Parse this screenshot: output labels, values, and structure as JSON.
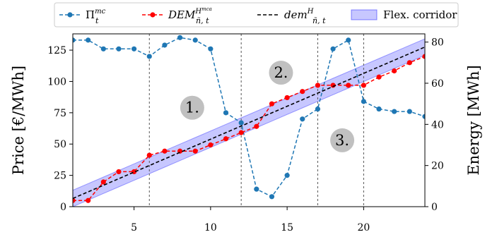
{
  "chart_data": {
    "type": "line",
    "x": [
      1,
      2,
      3,
      4,
      5,
      6,
      7,
      8,
      9,
      10,
      11,
      12,
      13,
      14,
      15,
      16,
      17,
      18,
      19,
      20,
      21,
      22,
      23,
      24
    ],
    "xlim": [
      1,
      24
    ],
    "xticks": [
      5,
      10,
      15,
      20
    ],
    "ylabel_left": "Price [€/MWh]",
    "ylabel_right": "Energy [MWh]",
    "ylim_left": [
      0,
      138
    ],
    "ylim_right": [
      0,
      84
    ],
    "yticks_left": [
      0,
      25,
      50,
      75,
      100,
      125
    ],
    "yticks_right": [
      0,
      20,
      40,
      60,
      80
    ],
    "vlines": [
      6,
      12,
      17,
      20
    ],
    "series": [
      {
        "name": "Π",
        "legend_sup": "mc",
        "legend_sub": "t",
        "axis": "left",
        "style": "dashed-markers",
        "color": "#1f77b4",
        "values": [
          133,
          133,
          126,
          126,
          126,
          120,
          129,
          135,
          133,
          126,
          75,
          67,
          14,
          8,
          25,
          70,
          78,
          126,
          133,
          84,
          78,
          76,
          76,
          72
        ]
      },
      {
        "name": "DEM",
        "legend_sup": "H",
        "legend_supsup": "mca",
        "legend_sub": "ñ, t",
        "axis": "right",
        "style": "dashed-markers",
        "color": "#ff0000",
        "values": [
          3,
          3,
          12,
          17,
          17,
          25,
          27,
          27,
          27,
          30,
          33,
          36,
          39,
          50,
          53,
          56,
          59,
          59,
          59,
          59,
          63,
          66,
          70,
          73
        ]
      },
      {
        "name": "dem",
        "legend_sup": "H",
        "legend_sub": "ñ, t",
        "axis": "right",
        "style": "dashed",
        "color": "#000000",
        "values": [
          4,
          7.2,
          10.4,
          13.6,
          16.8,
          20,
          23.2,
          26.4,
          29.6,
          32.8,
          36,
          39.2,
          42.4,
          45.6,
          48.8,
          52,
          55.2,
          58.4,
          61.6,
          64.8,
          68,
          71.2,
          74.4,
          77.6
        ]
      }
    ],
    "corridor": {
      "name": "Flex. corridor",
      "axis": "right",
      "color": "#0000ff",
      "lower": [
        0,
        3.2,
        6.4,
        9.6,
        12.8,
        16,
        19.2,
        22.4,
        25.6,
        28.8,
        32,
        35.2,
        38.4,
        41.6,
        44.8,
        48,
        51.2,
        54.4,
        57.6,
        60.8,
        64,
        67.2,
        70.4,
        73.6
      ],
      "upper": [
        8,
        11.2,
        14.4,
        17.6,
        20.8,
        24,
        27.2,
        30.4,
        33.6,
        36.8,
        40,
        43.2,
        46.4,
        49.6,
        52.8,
        56,
        59.2,
        62.4,
        65.6,
        68.8,
        72,
        75.2,
        78.4,
        81.6
      ]
    },
    "annotations": [
      {
        "text": "1.",
        "x": 8.8,
        "y_left": 79
      },
      {
        "text": "2.",
        "x": 14.6,
        "y_left": 107
      },
      {
        "text": "3.",
        "x": 18.6,
        "y_left": 53
      }
    ],
    "legend_position": "top"
  }
}
